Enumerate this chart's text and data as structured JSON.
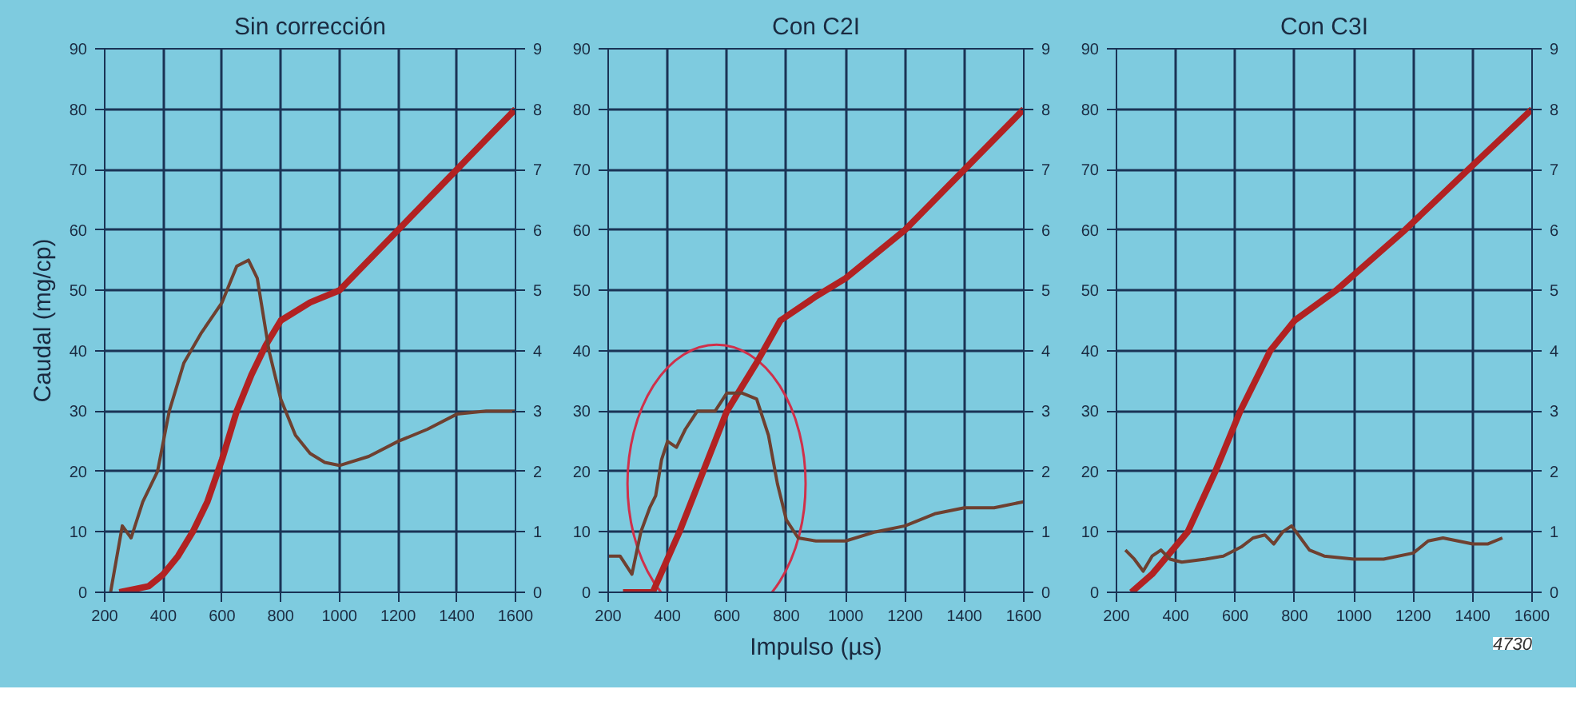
{
  "chart_data": [
    {
      "type": "line",
      "title": "Sin corrección",
      "ylabel": "Caudal (mg/cp)",
      "xlim": [
        200,
        1600
      ],
      "xticks": [
        200,
        400,
        600,
        800,
        1000,
        1200,
        1400,
        1600
      ],
      "ylim": [
        0,
        90
      ],
      "yticks": [
        0,
        10,
        20,
        30,
        40,
        50,
        60,
        70,
        80,
        90
      ],
      "y2lim": [
        0,
        9
      ],
      "y2ticks": [
        0,
        1,
        2,
        3,
        4,
        5,
        6,
        7,
        8,
        9
      ],
      "grid": true,
      "line_style": "solid",
      "series": [
        {
          "color": "#b22222",
          "x": [
            250,
            350,
            400,
            450,
            500,
            550,
            600,
            650,
            700,
            750,
            800,
            900,
            1000,
            1100,
            1200,
            1300,
            1400,
            1500,
            1600
          ],
          "values": [
            0,
            1,
            3,
            6,
            10,
            15,
            22,
            30,
            36,
            41,
            45,
            48,
            50,
            55,
            60,
            65,
            70,
            75,
            80
          ]
        },
        {
          "color": "#6e4030",
          "axis": "y2",
          "x": [
            220,
            260,
            290,
            330,
            380,
            420,
            470,
            530,
            600,
            650,
            690,
            720,
            760,
            800,
            850,
            900,
            950,
            1000,
            1100,
            1200,
            1300,
            1400,
            1500,
            1600
          ],
          "values": [
            0,
            1.1,
            0.9,
            1.5,
            2.0,
            3.0,
            3.8,
            4.3,
            4.8,
            5.4,
            5.5,
            5.2,
            4.0,
            3.2,
            2.6,
            2.3,
            2.15,
            2.1,
            2.25,
            2.5,
            2.7,
            2.95,
            3.0,
            3.0
          ]
        }
      ]
    },
    {
      "type": "line",
      "title": "Con C2I",
      "xlabel": "Impulso (µs)",
      "xlim": [
        200,
        1600
      ],
      "xticks": [
        200,
        400,
        600,
        800,
        1000,
        1200,
        1400,
        1600
      ],
      "ylim": [
        0,
        90
      ],
      "yticks": [
        0,
        10,
        20,
        30,
        40,
        50,
        60,
        70,
        80,
        90
      ],
      "y2lim": [
        0,
        9
      ],
      "y2ticks": [
        0,
        1,
        2,
        3,
        4,
        5,
        6,
        7,
        8,
        9
      ],
      "grid": true,
      "line_style": "solid",
      "series": [
        {
          "color": "#b22222",
          "x": [
            250,
            350,
            440,
            520,
            600,
            700,
            780,
            900,
            1000,
            1200,
            1400,
            1600
          ],
          "values": [
            0,
            0,
            10,
            20,
            30,
            38,
            45,
            49,
            52,
            60,
            70,
            80
          ]
        },
        {
          "color": "#6e4030",
          "axis": "y2",
          "x": [
            200,
            240,
            280,
            310,
            340,
            360,
            380,
            400,
            430,
            460,
            500,
            560,
            600,
            650,
            700,
            740,
            770,
            800,
            840,
            900,
            1000,
            1100,
            1200,
            1300,
            1400,
            1500,
            1600
          ],
          "values": [
            0.6,
            0.6,
            0.3,
            1.0,
            1.4,
            1.6,
            2.2,
            2.5,
            2.4,
            2.7,
            3.0,
            3.0,
            3.3,
            3.3,
            3.2,
            2.6,
            1.8,
            1.2,
            0.9,
            0.85,
            0.85,
            1.0,
            1.1,
            1.3,
            1.4,
            1.4,
            1.5
          ]
        }
      ]
    },
    {
      "type": "line",
      "title": "Con C3I",
      "xlim": [
        200,
        1600
      ],
      "xticks": [
        200,
        400,
        600,
        800,
        1000,
        1200,
        1400,
        1600
      ],
      "ylim": [
        0,
        90
      ],
      "yticks": [
        0,
        10,
        20,
        30,
        40,
        50,
        60,
        70,
        80,
        90
      ],
      "y2lim": [
        0,
        9
      ],
      "y2ticks": [
        0,
        1,
        2,
        3,
        4,
        5,
        6,
        7,
        8,
        9
      ],
      "grid": true,
      "line_style": "solid",
      "annotations": [
        "4730"
      ],
      "series": [
        {
          "color": "#b22222",
          "x": [
            250,
            320,
            440,
            533,
            617,
            718,
            800,
            940,
            1172,
            1385,
            1600
          ],
          "values": [
            0,
            3,
            10,
            20,
            30,
            40,
            45,
            50,
            60,
            70,
            80
          ]
        },
        {
          "color": "#6e4030",
          "axis": "y2",
          "x": [
            230,
            260,
            290,
            320,
            350,
            380,
            420,
            500,
            560,
            620,
            660,
            700,
            730,
            760,
            790,
            820,
            850,
            900,
            1000,
            1100,
            1200,
            1250,
            1300,
            1350,
            1400,
            1450,
            1500
          ],
          "values": [
            0.7,
            0.55,
            0.35,
            0.6,
            0.7,
            0.55,
            0.5,
            0.55,
            0.6,
            0.75,
            0.9,
            0.95,
            0.8,
            1.0,
            1.1,
            0.9,
            0.7,
            0.6,
            0.55,
            0.55,
            0.65,
            0.85,
            0.9,
            0.85,
            0.8,
            0.8,
            0.9
          ]
        }
      ]
    }
  ]
}
